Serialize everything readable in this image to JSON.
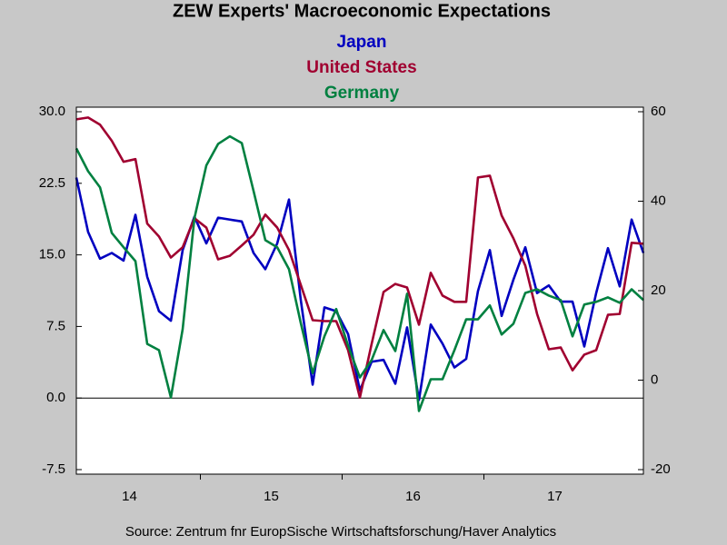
{
  "chart_data": {
    "type": "line",
    "title": "ZEW Experts' Macroeconomic Expectations",
    "source": "Source:  Zentrum fnr EuropSische Wirtschaftsforschung/Haver Analytics",
    "x": [
      2014.125,
      2014.208,
      2014.292,
      2014.375,
      2014.458,
      2014.542,
      2014.625,
      2014.708,
      2014.792,
      2014.875,
      2014.958,
      2015.042,
      2015.125,
      2015.208,
      2015.292,
      2015.375,
      2015.458,
      2015.542,
      2015.625,
      2015.708,
      2015.792,
      2015.875,
      2015.958,
      2016.042,
      2016.125,
      2016.208,
      2016.292,
      2016.375,
      2016.458,
      2016.542,
      2016.625,
      2016.708,
      2016.792,
      2016.875,
      2016.958,
      2017.042,
      2017.125,
      2017.208,
      2017.292,
      2017.375,
      2017.458,
      2017.542,
      2017.625,
      2017.708,
      2017.792,
      2017.875,
      2017.958,
      2018.042,
      2018.125
    ],
    "xlim": [
      2014.125,
      2018.125
    ],
    "xticks": [
      {
        "value": 2014.5,
        "label": "14"
      },
      {
        "value": 2015.5,
        "label": "15"
      },
      {
        "value": 2016.5,
        "label": "16"
      },
      {
        "value": 2017.5,
        "label": "17"
      }
    ],
    "year_ticks": [
      2015,
      2016,
      2017
    ],
    "ylim": [
      -7.5,
      30
    ],
    "yticks": [
      {
        "value": 30,
        "label": "30.0"
      },
      22.5,
      {
        "value": 15,
        "label": "15.0"
      },
      7.5,
      {
        "value": 0,
        "label": "0.0"
      },
      -7.5
    ],
    "y2lim": [
      -20,
      60
    ],
    "y2ticks": [
      60,
      40,
      20,
      0,
      -20
    ],
    "zero_line": true,
    "series": [
      {
        "name": "Japan",
        "color": "#0000c0",
        "axis": "y",
        "values": [
          23.1,
          17.4,
          14.6,
          15.2,
          14.4,
          19.2,
          12.7,
          9.1,
          8.1,
          15.5,
          19.0,
          16.2,
          18.9,
          18.7,
          18.5,
          15.2,
          13.5,
          16.2,
          20.8,
          10.3,
          1.4,
          9.5,
          9.1,
          6.7,
          0.8,
          3.8,
          4.0,
          1.5,
          7.4,
          -0.2,
          7.7,
          5.7,
          3.2,
          4.1,
          11.2,
          15.5,
          8.6,
          12.4,
          15.8,
          11.0,
          11.8,
          10.1,
          10.1,
          5.4,
          11.0,
          15.7,
          11.7,
          18.7,
          15.2
        ]
      },
      {
        "name": "United States",
        "color": "#a00030",
        "axis": "y2",
        "values": [
          58.3,
          58.7,
          57.1,
          53.5,
          48.8,
          49.4,
          35.0,
          32.1,
          27.4,
          29.7,
          36.2,
          34.1,
          27.0,
          27.8,
          30.1,
          32.5,
          37.0,
          34.1,
          29.1,
          21.3,
          13.4,
          13.2,
          13.2,
          6.7,
          -3.9,
          8.1,
          19.7,
          21.5,
          20.7,
          12.4,
          24.0,
          18.9,
          17.5,
          17.5,
          45.3,
          45.7,
          36.8,
          31.7,
          25.6,
          14.8,
          6.9,
          7.3,
          2.2,
          5.7,
          6.7,
          14.6,
          14.8,
          30.7,
          30.5
        ]
      },
      {
        "name": "Germany",
        "color": "#008040",
        "axis": "y2",
        "values": [
          51.8,
          46.7,
          43.1,
          32.9,
          29.7,
          26.6,
          8.1,
          6.7,
          -3.9,
          11.4,
          36.2,
          48.0,
          52.8,
          54.5,
          53.0,
          42.3,
          31.3,
          29.7,
          24.8,
          12.8,
          1.6,
          9.8,
          15.9,
          7.7,
          0.6,
          4.5,
          11.2,
          6.5,
          19.3,
          -6.9,
          0.2,
          0.2,
          6.7,
          13.6,
          13.6,
          16.7,
          10.2,
          12.6,
          19.5,
          20.3,
          18.9,
          17.9,
          9.8,
          16.9,
          17.5,
          18.5,
          17.3,
          20.3,
          17.9
        ]
      }
    ]
  }
}
